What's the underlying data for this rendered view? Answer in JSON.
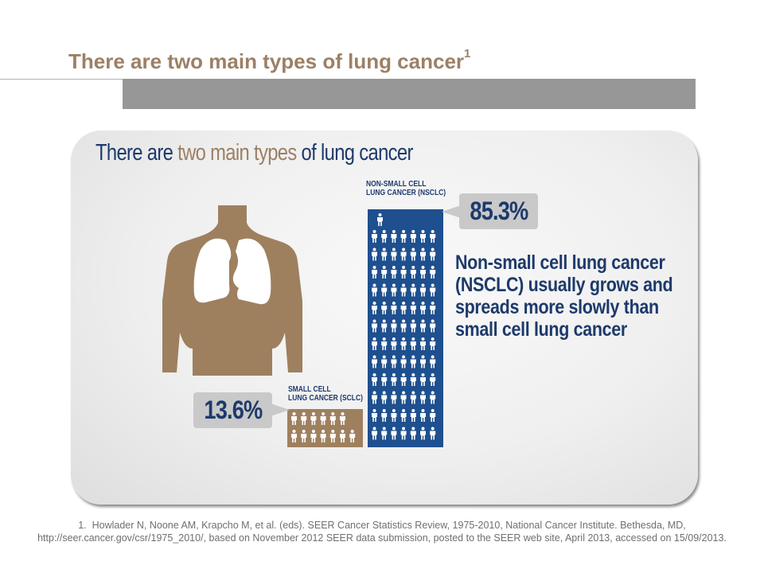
{
  "title": {
    "text": "There are two main types of lung cancer",
    "superscript": "1"
  },
  "infographic": {
    "heading_part1": "There are ",
    "heading_accent": "two main types",
    "heading_part2": " of lung cancer",
    "nsclc_label_line1": "NON-SMALL CELL",
    "nsclc_label_line2": "LUNG CANCER (NSCLC)",
    "nsclc_percent": "85.3%",
    "nsclc_fraction": 0.853,
    "sclc_label_line1": "SMALL CELL",
    "sclc_label_line2": "LUNG CANCER (SCLC)",
    "sclc_percent": "13.6%",
    "sclc_fraction": 0.136,
    "description_line1": "Non-small cell lung cancer",
    "description_line2": "(NSCLC) usually grows and",
    "description_line3": "spreads more slowly than",
    "description_line4": "small cell lung cancer"
  },
  "colors": {
    "title": "#9c8065",
    "navy": "#1d3a6b",
    "nsclc_bar": "#1e4f8e",
    "sclc_bar": "#9e805f",
    "header_bar": "#979797"
  },
  "footnote": {
    "text": "1.  Howlader N, Noone AM, Krapcho M, et al. (eds). SEER Cancer Statistics Review, 1975-2010, National Cancer Institute. Bethesda, MD, http://seer.cancer.gov/csr/1975_2010/, based on November 2012 SEER data submission, posted to the SEER web site, April 2013, accessed on 15/09/2013."
  }
}
